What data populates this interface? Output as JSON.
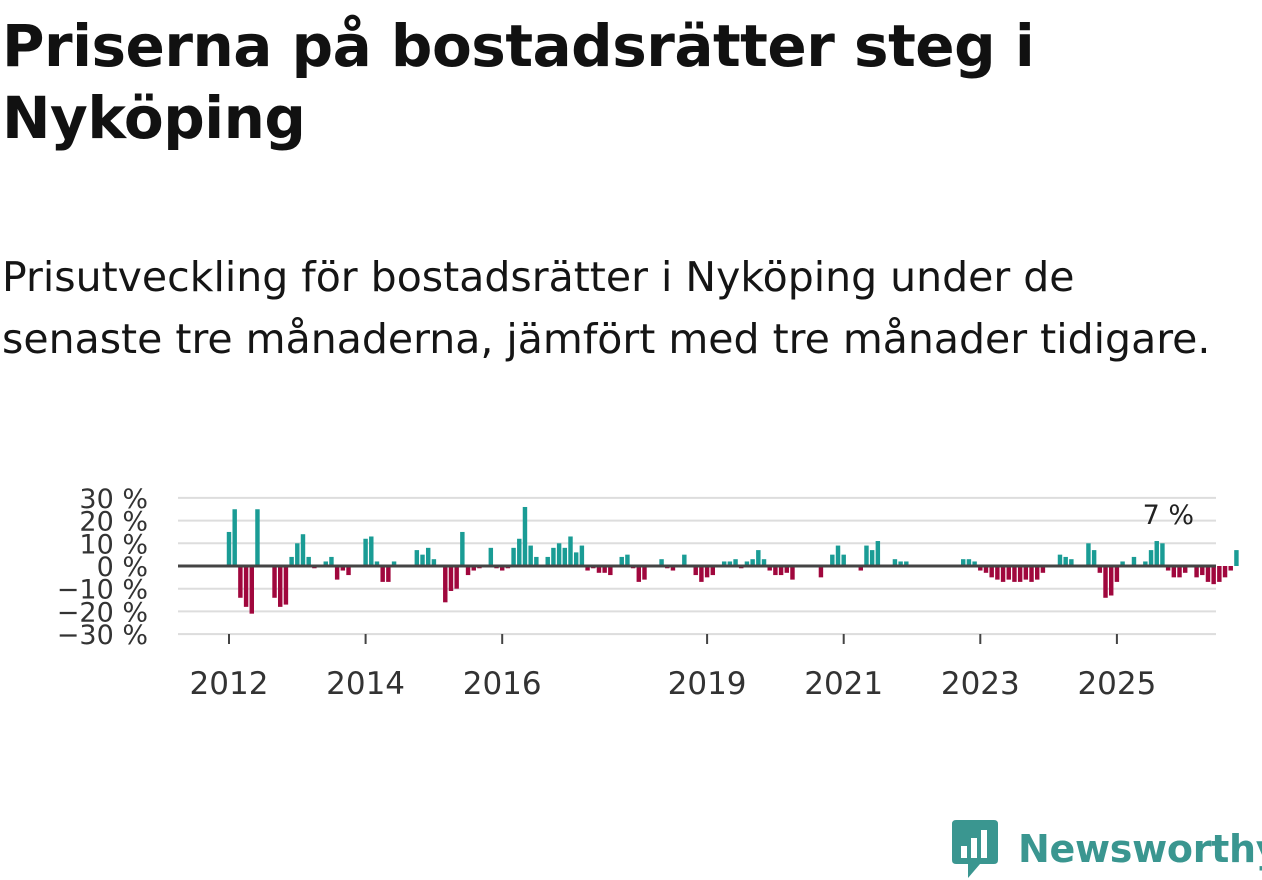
{
  "header": {
    "title": "Priserna på bostadsrätter steg i Nyköping",
    "subtitle": "Prisutveckling för bostadsrätter i Nyköping under de senaste tre månaderna, jämfört med tre månader tidigare."
  },
  "brand": {
    "name": "Newsworthy"
  },
  "colors": {
    "positive": "#1a9c95",
    "negative": "#a0073d",
    "grid": "#dddddd",
    "zero": "#444444",
    "brand": "#3a9690"
  },
  "chart_data": {
    "type": "bar",
    "title": "Priserna på bostadsrätter steg i Nyköping",
    "ylabel": "",
    "xlabel": "",
    "ylim": [
      -30,
      30
    ],
    "y_ticks": [
      30,
      20,
      10,
      0,
      -10,
      -20,
      -30
    ],
    "y_tick_labels": [
      "30 %",
      "20 %",
      "10 %",
      "0 %",
      "−10 %",
      "−20 %",
      "−30 %"
    ],
    "x_ticks": [
      2012,
      2014,
      2016,
      2019,
      2021,
      2023,
      2025
    ],
    "x_tick_labels": [
      "2012",
      "2014",
      "2016",
      "2019",
      "2021",
      "2023",
      "2025"
    ],
    "x_range": [
      2011.25,
      2026.5
    ],
    "annotation": {
      "label": "7 %",
      "x": 2025.75,
      "value": 7
    },
    "series": [
      {
        "name": "Prisutveckling",
        "start": 2012,
        "step_months": 1,
        "values": [
          15,
          25,
          -14,
          -18,
          -21,
          25,
          0,
          0,
          -14,
          -18,
          -17,
          4,
          10,
          14,
          4,
          -1,
          0,
          2,
          4,
          -6,
          -2,
          -4,
          0,
          0,
          12,
          13,
          2,
          -7,
          -7,
          2,
          0,
          0,
          0,
          7,
          5,
          8,
          3,
          0,
          -16,
          -11,
          -10,
          15,
          -4,
          -2,
          -1,
          0,
          8,
          -1,
          -2,
          -1,
          8,
          12,
          26,
          9,
          4,
          0,
          4,
          8,
          10,
          8,
          13,
          6,
          9,
          -2,
          -1,
          -3,
          -3,
          -4,
          0,
          4,
          5,
          -1,
          -7,
          -6,
          0,
          0,
          3,
          -1,
          -2,
          0,
          5,
          0,
          -4,
          -7,
          -5,
          -4,
          0,
          2,
          2,
          3,
          -1,
          2,
          3,
          7,
          3,
          -2,
          -4,
          -4,
          -3,
          -6,
          0,
          0,
          0,
          0,
          -5,
          0,
          5,
          9,
          5,
          0,
          0,
          -2,
          9,
          7,
          11,
          0,
          0,
          3,
          2,
          2,
          0,
          0,
          0,
          0,
          0,
          0,
          0,
          0,
          0,
          3,
          3,
          2,
          -2,
          -3,
          -5,
          -6,
          -7,
          -6,
          -7,
          -7,
          -6,
          -7,
          -6,
          -3,
          0,
          0,
          5,
          4,
          3,
          0,
          0,
          10,
          7,
          -3,
          -14,
          -13,
          -7,
          2,
          0,
          4,
          0,
          2,
          7,
          11,
          10,
          -2,
          -5,
          -5,
          -3,
          0,
          -5,
          -4,
          -7,
          -8,
          -7,
          -5,
          -2,
          7
        ]
      }
    ]
  }
}
